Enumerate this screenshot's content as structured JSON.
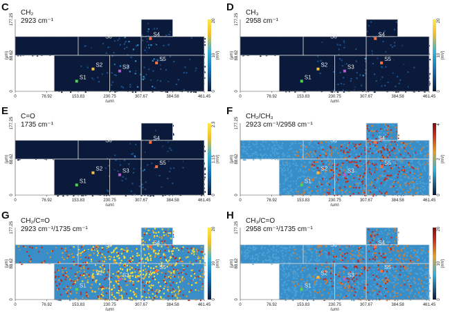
{
  "figure": {
    "panels": [
      {
        "id": "C",
        "title1": "CH₂",
        "title2": "2923 cm⁻¹",
        "cbar_top": "20",
        "cbar_mid": "10",
        "cbar_bot": "0",
        "cbar_unit": "(mV)",
        "style": "intensity",
        "intensity": 0.55
      },
      {
        "id": "D",
        "title1": "CH₃",
        "title2": "2958 cm⁻¹",
        "cbar_top": "20",
        "cbar_mid": "10",
        "cbar_bot": "0",
        "cbar_unit": "(mV)",
        "style": "intensity",
        "intensity": 0.35
      },
      {
        "id": "E",
        "title1": "C=O",
        "title2": "1735 cm⁻¹",
        "cbar_top": "2.3",
        "cbar_mid": "1.15",
        "cbar_bot": "0",
        "cbar_unit": "(mV)",
        "style": "intensity",
        "intensity": 0.3
      },
      {
        "id": "F",
        "title1": "CH₂/CH₃",
        "title2": "2923 cm⁻¹/2958 cm⁻¹",
        "cbar_top": "4",
        "cbar_mid": "2",
        "cbar_bot": "0",
        "cbar_unit": "(mV)",
        "style": "ratio",
        "intensity": 0.75
      },
      {
        "id": "G",
        "title1": "CH₂/C=O",
        "title2": "2923 cm⁻¹/1735 cm⁻¹",
        "cbar_top": "20",
        "cbar_mid": "10",
        "cbar_bot": "0",
        "cbar_unit": "(mV)",
        "style": "ratio-bright",
        "intensity": 0.85
      },
      {
        "id": "H",
        "title1": "CH₃/C=O",
        "title2": "2958 cm⁻¹/1735 cm⁻¹",
        "cbar_top": "20",
        "cbar_mid": "10",
        "cbar_bot": "0",
        "cbar_unit": "(mV)",
        "style": "ratio",
        "intensity": 0.6
      }
    ],
    "x_ticks": [
      "0",
      "76.92",
      "153.83",
      "230.75",
      "307.67",
      "384.58",
      "461.45"
    ],
    "x_unit": "(μm)",
    "y_ticks": [
      "177.25",
      "88.62",
      "0"
    ],
    "y_unit": "(μm)",
    "site_labels": [
      "S0",
      "S1",
      "S2",
      "S3",
      "S4",
      "S5"
    ],
    "colors": {
      "low": "#0b1a3a",
      "mid": "#2f8fd0",
      "high": "#f5d02a",
      "hot": "#c0281e"
    }
  }
}
